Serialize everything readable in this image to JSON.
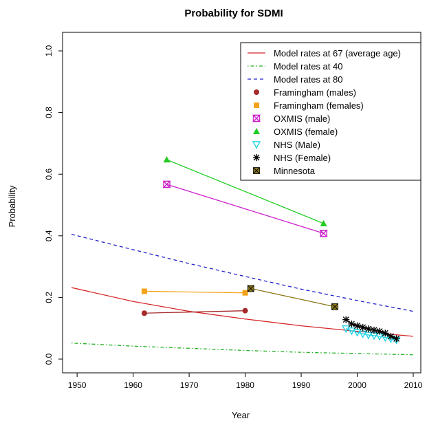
{
  "chart_data": {
    "type": "line",
    "title": "Probability for SDMI",
    "xlabel": "Year",
    "ylabel": "Probability",
    "xlim": [
      1949,
      2010
    ],
    "ylim": [
      0.0,
      1.0
    ],
    "xticks": [
      1950,
      1960,
      1970,
      1980,
      1990,
      2000,
      2010
    ],
    "yticks": [
      0.0,
      0.2,
      0.4,
      0.6,
      0.8,
      1.0
    ],
    "xtick_labels": [
      "1950",
      "1960",
      "1970",
      "1980",
      "1990",
      "2000",
      "2010"
    ],
    "ytick_labels": [
      "0.0",
      "0.2",
      "0.4",
      "0.6",
      "0.8",
      "1.0"
    ],
    "legend_position": "top-right",
    "series": [
      {
        "name": "Model rates at 67 (average age)",
        "kind": "curve",
        "color": "#d62728",
        "dash": "solid",
        "x": [
          1949,
          1960,
          1970,
          1980,
          1990,
          2000,
          2010
        ],
        "y": [
          0.232,
          0.187,
          0.155,
          0.13,
          0.108,
          0.09,
          0.074
        ]
      },
      {
        "name": "Model rates at 40",
        "kind": "curve",
        "color": "#22b022",
        "dash": "dotdash",
        "x": [
          1949,
          1960,
          1970,
          1980,
          1990,
          2000,
          2010
        ],
        "y": [
          0.052,
          0.042,
          0.035,
          0.028,
          0.022,
          0.018,
          0.014
        ]
      },
      {
        "name": "Model rates at 80",
        "kind": "curve",
        "color": "#2222cc",
        "dash": "dashed",
        "x": [
          1949,
          1960,
          1970,
          1980,
          1990,
          2000,
          2010
        ],
        "y": [
          0.405,
          0.355,
          0.31,
          0.268,
          0.227,
          0.19,
          0.155
        ]
      },
      {
        "name": "Framingham  (males)",
        "kind": "points",
        "marker": "circle",
        "color": "#a52a2a",
        "x": [
          1962,
          1980
        ],
        "y": [
          0.149,
          0.157
        ]
      },
      {
        "name": "Framingham (females)",
        "kind": "points",
        "marker": "square",
        "color": "#f5a31a",
        "x": [
          1962,
          1980
        ],
        "y": [
          0.22,
          0.215
        ]
      },
      {
        "name": "OXMIS (male)",
        "kind": "points",
        "marker": "hourglass",
        "color": "#cc22cc",
        "x": [
          1966,
          1994
        ],
        "y": [
          0.567,
          0.408
        ]
      },
      {
        "name": "OXMIS (female)",
        "kind": "points",
        "marker": "triangle",
        "color": "#22cc22",
        "x": [
          1966,
          1994
        ],
        "y": [
          0.647,
          0.44
        ]
      },
      {
        "name": "NHS (Male)",
        "kind": "points",
        "marker": "triangle-down",
        "color": "#22d4e6",
        "x": [
          1998,
          1999,
          2000,
          2001,
          2002,
          2003,
          2004,
          2005,
          2006,
          2007
        ],
        "y": [
          0.099,
          0.092,
          0.087,
          0.082,
          0.078,
          0.076,
          0.074,
          0.07,
          0.066,
          0.062
        ]
      },
      {
        "name": "NHS (Female)",
        "kind": "points",
        "marker": "star",
        "color": "#000000",
        "x": [
          1998,
          1999,
          2000,
          2001,
          2002,
          2003,
          2004,
          2005,
          2006,
          2007
        ],
        "y": [
          0.128,
          0.114,
          0.108,
          0.103,
          0.098,
          0.094,
          0.09,
          0.084,
          0.074,
          0.066
        ]
      },
      {
        "name": "Minnesota",
        "kind": "points",
        "marker": "boxed-x",
        "color": "#8a7a18",
        "x": [
          1981,
          1996
        ],
        "y": [
          0.229,
          0.17
        ]
      }
    ]
  }
}
